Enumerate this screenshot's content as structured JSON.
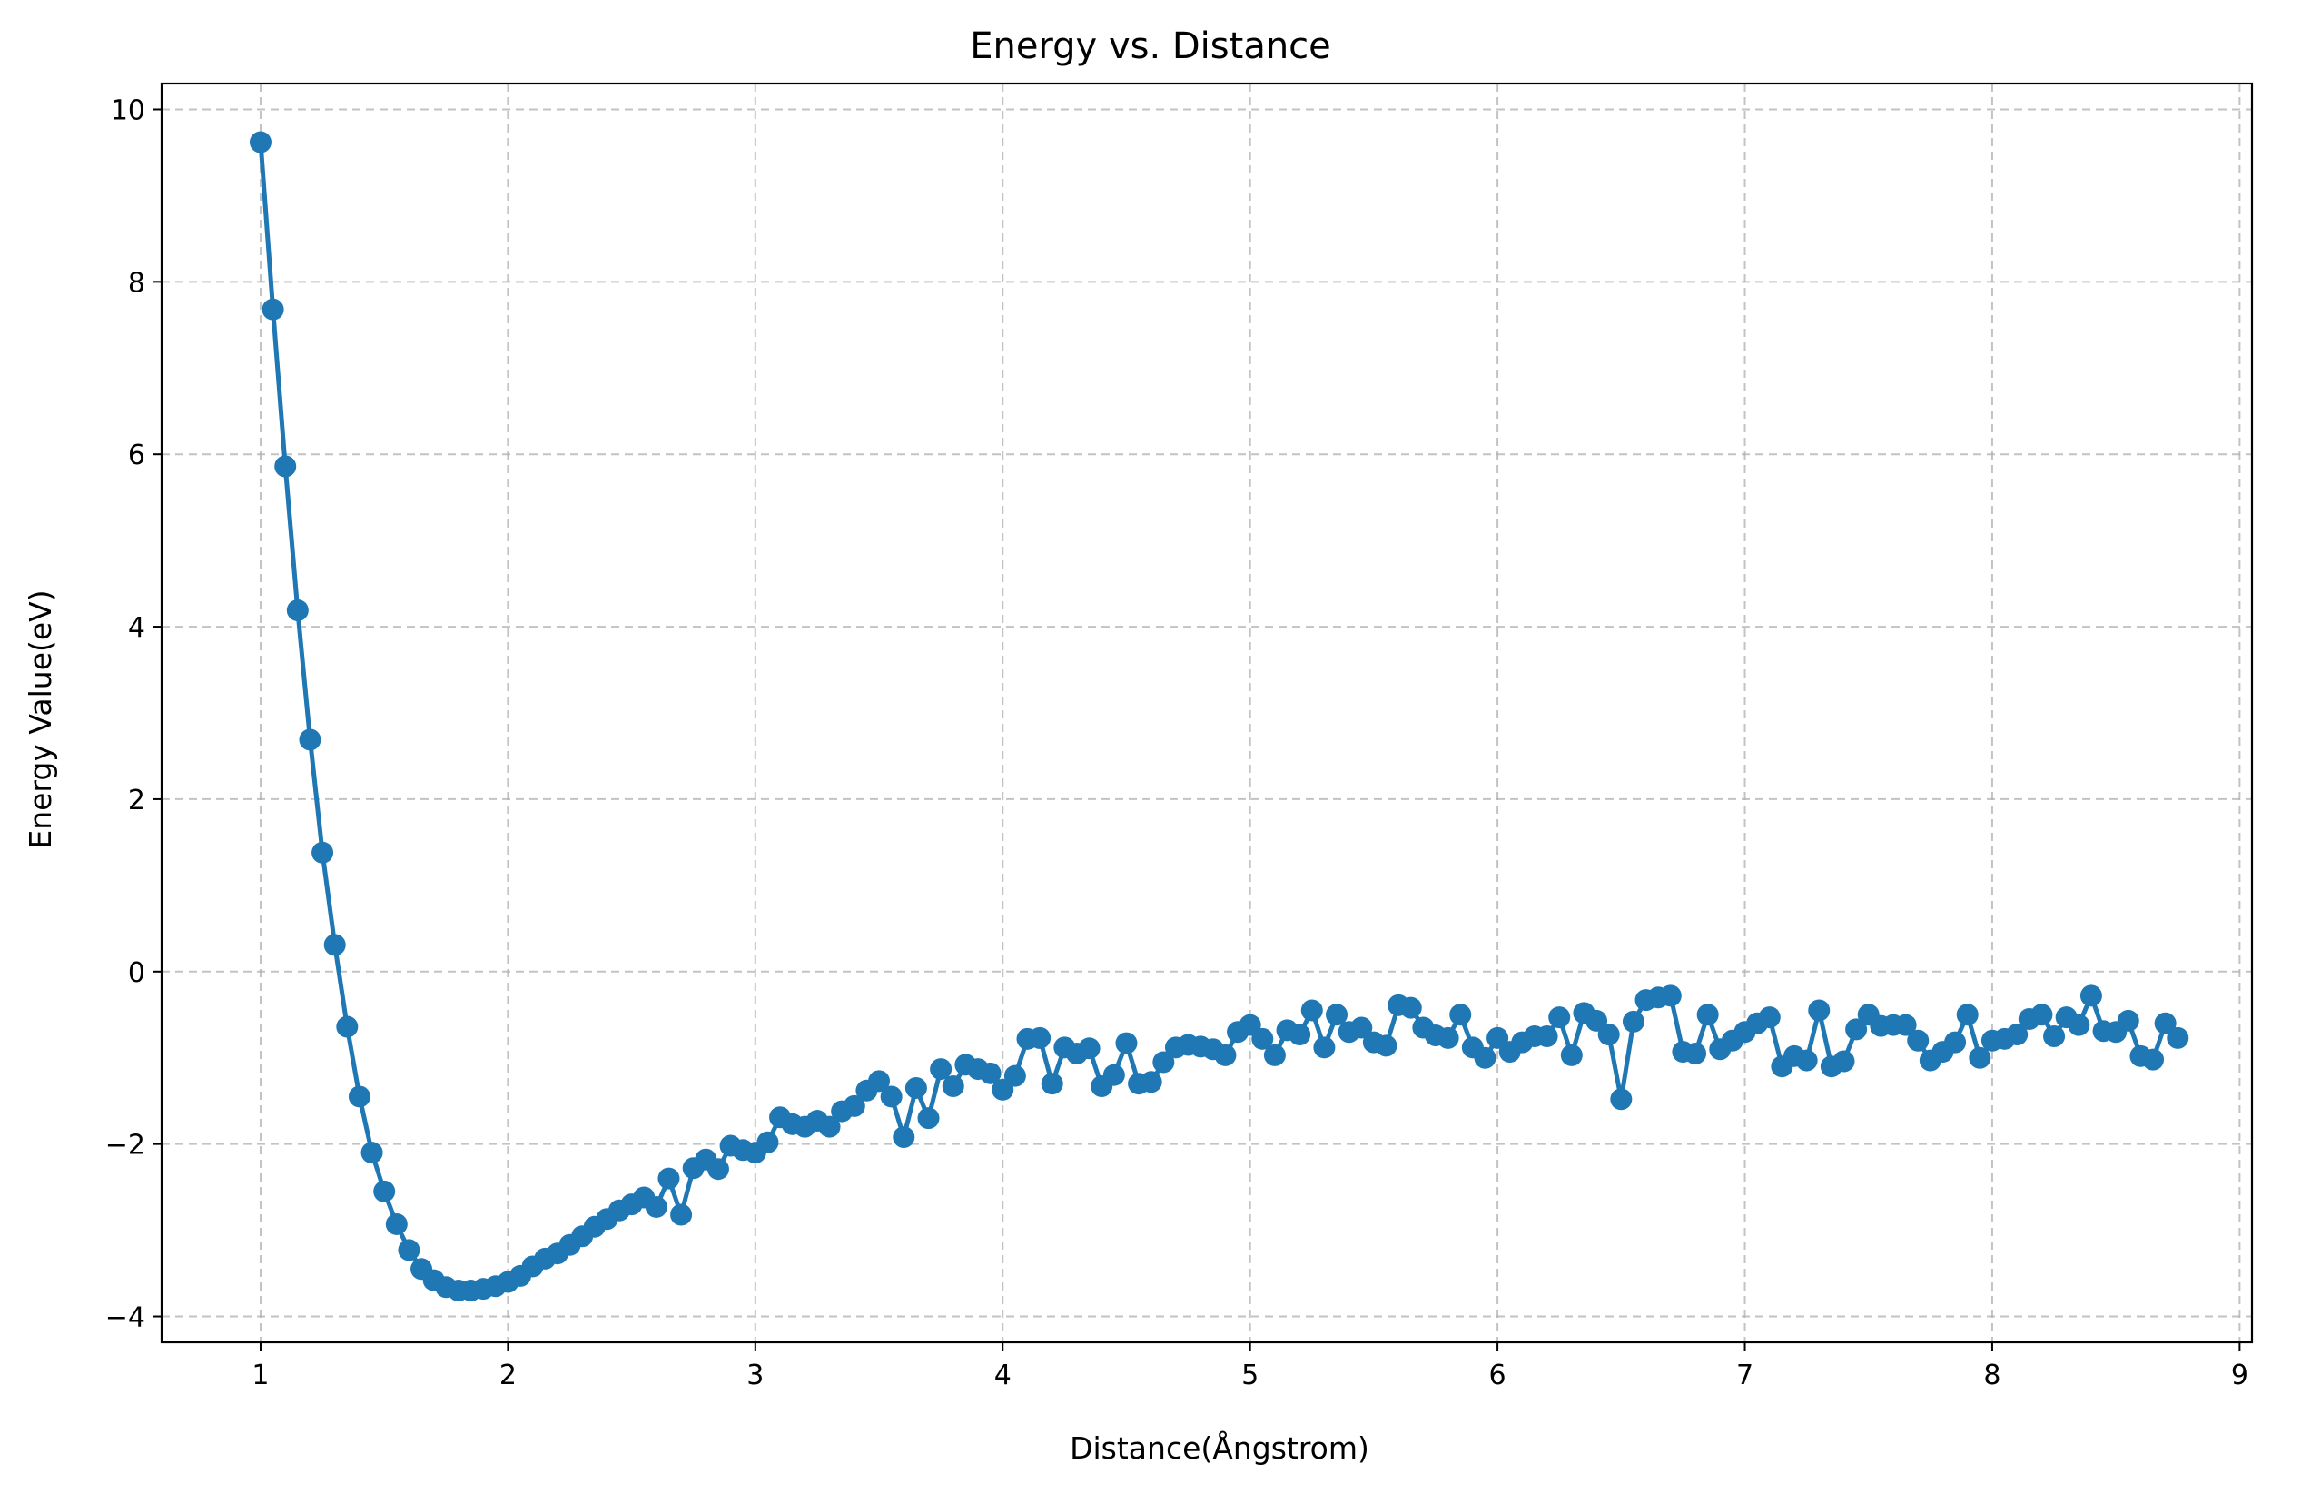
{
  "chart_data": {
    "type": "line",
    "title": "Energy vs. Distance",
    "xlabel": "Distance(Ångstrom)",
    "ylabel": "Energy Value(eV)",
    "xlim": [
      0.6,
      9.05
    ],
    "ylim": [
      -4.3,
      10.3
    ],
    "xticks": [
      1,
      2,
      3,
      4,
      5,
      6,
      7,
      8,
      9
    ],
    "xtick_labels": [
      "1",
      "2",
      "3",
      "4",
      "5",
      "6",
      "7",
      "8",
      "9"
    ],
    "yticks": [
      -4,
      -2,
      0,
      2,
      4,
      6,
      8,
      10
    ],
    "ytick_labels": [
      "−4",
      "−2",
      "0",
      "2",
      "4",
      "6",
      "8",
      "10"
    ],
    "grid": true,
    "marker": "circle",
    "color": "#1f77b4",
    "series": [
      {
        "x": [
          1.0,
          1.05,
          1.1,
          1.15,
          1.2,
          1.25,
          1.3,
          1.35,
          1.4,
          1.45,
          1.5,
          1.55,
          1.6,
          1.65,
          1.7,
          1.75,
          1.8,
          1.85,
          1.9,
          1.95,
          2.0,
          2.05,
          2.1,
          2.15,
          2.2,
          2.25,
          2.3,
          2.35,
          2.4,
          2.45,
          2.5,
          2.55,
          2.6,
          2.65,
          2.7,
          2.75,
          2.8,
          2.85,
          2.9,
          2.95,
          3.0,
          3.05,
          3.1,
          3.15,
          3.2,
          3.25,
          3.3,
          3.35,
          3.4,
          3.45,
          3.5,
          3.55,
          3.6,
          3.65,
          3.7,
          3.75,
          3.8,
          3.85,
          3.9,
          3.95,
          4.0,
          4.05,
          4.1,
          4.15,
          4.2,
          4.25,
          4.3,
          4.35,
          4.4,
          4.45,
          4.5,
          4.55,
          4.6,
          4.65,
          4.7,
          4.75,
          4.8,
          4.85,
          4.9,
          4.95,
          5.0,
          5.05,
          5.1,
          5.15,
          5.2,
          5.25,
          5.3,
          5.35,
          5.4,
          5.45,
          5.5,
          5.55,
          5.6,
          5.65,
          5.7,
          5.75,
          5.8,
          5.85,
          5.9,
          5.95,
          6.0,
          6.05,
          6.1,
          6.15,
          6.2,
          6.25,
          6.3,
          6.35,
          6.4,
          6.45,
          6.5,
          6.55,
          6.6,
          6.65,
          6.7,
          6.75,
          6.8,
          6.85,
          6.9,
          6.95,
          7.0,
          7.05,
          7.1,
          7.15,
          7.2,
          7.25,
          7.3,
          7.35,
          7.4,
          7.45,
          7.5,
          7.55,
          7.6,
          7.65,
          7.7,
          7.75,
          7.8,
          7.85,
          7.9,
          7.95,
          8.0,
          8.05,
          8.1,
          8.15,
          8.2,
          8.25,
          8.3,
          8.35,
          8.4,
          8.45,
          8.5,
          8.55,
          8.6,
          8.65,
          8.7,
          8.75
        ],
        "y": [
          9.62,
          7.68,
          5.86,
          4.19,
          2.69,
          1.38,
          0.31,
          -0.64,
          -1.45,
          -2.1,
          -2.55,
          -2.93,
          -3.23,
          -3.45,
          -3.58,
          -3.66,
          -3.7,
          -3.7,
          -3.68,
          -3.65,
          -3.6,
          -3.53,
          -3.42,
          -3.33,
          -3.27,
          -3.17,
          -3.07,
          -2.96,
          -2.87,
          -2.77,
          -2.7,
          -2.62,
          -2.73,
          -2.4,
          -2.82,
          -2.28,
          -2.18,
          -2.29,
          -2.02,
          -2.07,
          -2.1,
          -1.98,
          -1.69,
          -1.77,
          -1.8,
          -1.73,
          -1.8,
          -1.62,
          -1.56,
          -1.38,
          -1.27,
          -1.45,
          -1.92,
          -1.35,
          -1.7,
          -1.13,
          -1.33,
          -1.08,
          -1.13,
          -1.18,
          -1.37,
          -1.21,
          -0.78,
          -0.77,
          -1.3,
          -0.88,
          -0.95,
          -0.89,
          -1.33,
          -1.2,
          -0.83,
          -1.3,
          -1.28,
          -1.05,
          -0.88,
          -0.85,
          -0.87,
          -0.9,
          -0.97,
          -0.7,
          -0.62,
          -0.78,
          -0.97,
          -0.68,
          -0.73,
          -0.45,
          -0.88,
          -0.5,
          -0.7,
          -0.65,
          -0.82,
          -0.86,
          -0.39,
          -0.42,
          -0.65,
          -0.74,
          -0.77,
          -0.5,
          -0.88,
          -1.0,
          -0.77,
          -0.93,
          -0.82,
          -0.75,
          -0.75,
          -0.53,
          -0.97,
          -0.48,
          -0.57,
          -0.73,
          -1.48,
          -0.58,
          -0.33,
          -0.3,
          -0.28,
          -0.93,
          -0.95,
          -0.5,
          -0.9,
          -0.8,
          -0.7,
          -0.6,
          -0.53,
          -1.1,
          -0.98,
          -1.03,
          -0.45,
          -1.1,
          -1.04,
          -0.67,
          -0.5,
          -0.63,
          -0.62,
          -0.62,
          -0.8,
          -1.03,
          -0.93,
          -0.82,
          -0.5,
          -1.0,
          -0.8,
          -0.78,
          -0.73,
          -0.55,
          -0.5,
          -0.75,
          -0.53,
          -0.62,
          -0.28,
          -0.69,
          -0.7,
          -0.57,
          -0.98,
          -1.02,
          -0.6,
          -0.77
        ]
      }
    ]
  }
}
